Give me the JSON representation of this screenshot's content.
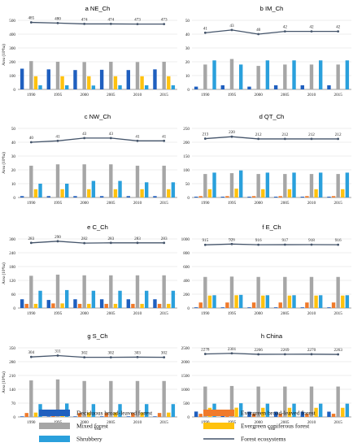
{
  "colors": {
    "deciduous": "#1f5fbf",
    "evergreen_broad": "#f07a2a",
    "mixed": "#a6a6a6",
    "evergreen_conifer": "#ffc20e",
    "shrub": "#2aa0dc",
    "forest": "#44546a",
    "grid": "#d9d9d9",
    "axis": "#808080"
  },
  "legend": {
    "items": [
      {
        "key": "deciduous",
        "label": "Deciduous broad-leaved forest",
        "kind": "box"
      },
      {
        "key": "evergreen_broad",
        "label": "Evergreen broad-leaved forest",
        "kind": "box"
      },
      {
        "key": "mixed",
        "label": "Mixed forest",
        "kind": "box"
      },
      {
        "key": "evergreen_conifer",
        "label": "Evergreen coniferous forest",
        "kind": "box"
      },
      {
        "key": "shrub",
        "label": "Shrubbery",
        "kind": "box"
      },
      {
        "key": "forest",
        "label": "Forest ecosystems",
        "kind": "line"
      }
    ]
  },
  "chart_data": [
    {
      "type": "bar",
      "title": "a NE_Ch",
      "ylabel": "Area (10⁴ha)",
      "xlabel": "",
      "categories": [
        "1990",
        "1995",
        "2000",
        "2005",
        "2010",
        "2015"
      ],
      "ylim": [
        0,
        500
      ],
      "yticks": [
        "0",
        "100",
        "200",
        "300",
        "400",
        "500"
      ],
      "grid": true,
      "series": [
        {
          "key": "deciduous",
          "values": [
            150,
            145,
            140,
            142,
            140,
            145
          ]
        },
        {
          "key": "evergreen_broad",
          "values": [
            0,
            0,
            0,
            0,
            0,
            0
          ]
        },
        {
          "key": "mixed",
          "values": [
            205,
            200,
            198,
            200,
            198,
            200
          ]
        },
        {
          "key": "evergreen_conifer",
          "values": [
            95,
            95,
            95,
            95,
            95,
            95
          ]
        },
        {
          "key": "shrub",
          "values": [
            30,
            30,
            28,
            30,
            30,
            30
          ]
        }
      ],
      "line": {
        "key": "forest",
        "values": [
          485,
          480,
          474,
          474,
          473,
          473
        ],
        "labels": [
          "485",
          "480",
          "474",
          "474",
          "473",
          "473"
        ]
      }
    },
    {
      "type": "bar",
      "title": "b IM_Ch",
      "ylabel": "",
      "xlabel": "",
      "categories": [
        "1990",
        "1995",
        "2000",
        "2005",
        "2010",
        "2015"
      ],
      "ylim": [
        0,
        50
      ],
      "yticks": [
        "0",
        "10",
        "20",
        "30",
        "40",
        "50"
      ],
      "grid": true,
      "series": [
        {
          "key": "deciduous",
          "values": [
            2,
            3,
            2,
            3,
            3,
            3
          ]
        },
        {
          "key": "evergreen_broad",
          "values": [
            0,
            0,
            0,
            0,
            0,
            0
          ]
        },
        {
          "key": "mixed",
          "values": [
            18,
            22,
            17,
            18,
            18,
            18
          ]
        },
        {
          "key": "evergreen_conifer",
          "values": [
            0,
            0,
            0,
            0,
            0,
            0
          ]
        },
        {
          "key": "shrub",
          "values": [
            21,
            18,
            21,
            21,
            21,
            21
          ]
        }
      ],
      "line": {
        "key": "forest",
        "values": [
          41,
          43,
          40,
          42,
          42,
          42
        ],
        "labels": [
          "41",
          "43",
          "40",
          "42",
          "42",
          "42"
        ]
      }
    },
    {
      "type": "bar",
      "title": "c NW_Ch",
      "ylabel": "Area (10⁴ha)",
      "xlabel": "",
      "categories": [
        "1990",
        "1995",
        "2000",
        "2005",
        "2010",
        "2015"
      ],
      "ylim": [
        0,
        50
      ],
      "yticks": [
        "0",
        "10",
        "20",
        "30",
        "40",
        "50"
      ],
      "grid": true,
      "series": [
        {
          "key": "deciduous",
          "values": [
            1,
            1,
            1,
            1,
            1,
            1
          ]
        },
        {
          "key": "evergreen_broad",
          "values": [
            0,
            0,
            0,
            0,
            0,
            0
          ]
        },
        {
          "key": "mixed",
          "values": [
            23,
            24,
            24,
            24,
            23,
            23
          ]
        },
        {
          "key": "evergreen_conifer",
          "values": [
            6,
            6,
            6,
            6,
            6,
            6
          ]
        },
        {
          "key": "shrub",
          "values": [
            10,
            10,
            12,
            12,
            11,
            11
          ]
        }
      ],
      "line": {
        "key": "forest",
        "values": [
          40,
          41,
          43,
          43,
          41,
          41
        ],
        "labels": [
          "40",
          "41",
          "43",
          "43",
          "41",
          "41"
        ]
      }
    },
    {
      "type": "bar",
      "title": "d QT_Ch",
      "ylabel": "",
      "xlabel": "",
      "categories": [
        "1990",
        "1995",
        "2000",
        "2005",
        "2010",
        "2015"
      ],
      "ylim": [
        0,
        250
      ],
      "yticks": [
        "0",
        "50",
        "100",
        "150",
        "200",
        "250"
      ],
      "grid": true,
      "series": [
        {
          "key": "deciduous",
          "values": [
            3,
            3,
            3,
            3,
            3,
            3
          ]
        },
        {
          "key": "evergreen_broad",
          "values": [
            5,
            5,
            5,
            5,
            5,
            5
          ]
        },
        {
          "key": "mixed",
          "values": [
            85,
            88,
            85,
            85,
            85,
            85
          ]
        },
        {
          "key": "evergreen_conifer",
          "values": [
            30,
            32,
            30,
            30,
            30,
            30
          ]
        },
        {
          "key": "shrub",
          "values": [
            90,
            98,
            90,
            90,
            90,
            90
          ]
        }
      ],
      "line": {
        "key": "forest",
        "values": [
          213,
          220,
          212,
          212,
          212,
          212
        ],
        "labels": [
          "213",
          "220",
          "212",
          "212",
          "212",
          "212"
        ]
      }
    },
    {
      "type": "bar",
      "title": "e C_Ch",
      "ylabel": "Area (10⁴ha)",
      "xlabel": "",
      "categories": [
        "1990",
        "1995",
        "2000",
        "2005",
        "2010",
        "2015"
      ],
      "ylim": [
        0,
        300
      ],
      "yticks": [
        "0",
        "60",
        "120",
        "180",
        "240",
        "300"
      ],
      "grid": true,
      "series": [
        {
          "key": "deciduous",
          "values": [
            38,
            35,
            38,
            38,
            38,
            38
          ]
        },
        {
          "key": "evergreen_broad",
          "values": [
            18,
            20,
            18,
            18,
            18,
            18
          ]
        },
        {
          "key": "mixed",
          "values": [
            140,
            145,
            142,
            142,
            142,
            142
          ]
        },
        {
          "key": "evergreen_conifer",
          "values": [
            18,
            20,
            18,
            18,
            18,
            18
          ]
        },
        {
          "key": "shrub",
          "values": [
            75,
            78,
            75,
            75,
            75,
            75
          ]
        }
      ],
      "line": {
        "key": "forest",
        "values": [
          283,
          290,
          282,
          283,
          283,
          283
        ],
        "labels": [
          "283",
          "290",
          "282",
          "283",
          "283",
          "283"
        ]
      }
    },
    {
      "type": "bar",
      "title": "f E_Ch",
      "ylabel": "",
      "xlabel": "",
      "categories": [
        "1990",
        "1995",
        "2000",
        "2005",
        "2010",
        "2015"
      ],
      "ylim": [
        0,
        1000
      ],
      "yticks": [
        "0",
        "200",
        "400",
        "600",
        "800",
        "1000"
      ],
      "grid": true,
      "series": [
        {
          "key": "deciduous",
          "values": [
            10,
            10,
            10,
            10,
            10,
            10
          ]
        },
        {
          "key": "evergreen_broad",
          "values": [
            80,
            80,
            80,
            80,
            80,
            80
          ]
        },
        {
          "key": "mixed",
          "values": [
            450,
            455,
            450,
            450,
            450,
            450
          ]
        },
        {
          "key": "evergreen_conifer",
          "values": [
            180,
            185,
            180,
            180,
            180,
            180
          ]
        },
        {
          "key": "shrub",
          "values": [
            185,
            190,
            185,
            185,
            185,
            185
          ]
        }
      ],
      "line": {
        "key": "forest",
        "values": [
          915,
          926,
          916,
          917,
          918,
          916
        ],
        "labels": [
          "915",
          "926",
          "916",
          "917",
          "918",
          "916"
        ]
      }
    },
    {
      "type": "bar",
      "title": "g S_Ch",
      "ylabel": "Area (10⁴ha)",
      "xlabel": "Year",
      "categories": [
        "1990",
        "1995",
        "2000",
        "2005",
        "2010",
        "2015"
      ],
      "ylim": [
        0,
        350
      ],
      "yticks": [
        "0",
        "70",
        "140",
        "210",
        "280",
        "350"
      ],
      "grid": true,
      "series": [
        {
          "key": "deciduous",
          "values": [
            3,
            3,
            3,
            3,
            3,
            3
          ]
        },
        {
          "key": "evergreen_broad",
          "values": [
            20,
            20,
            20,
            20,
            20,
            20
          ]
        },
        {
          "key": "mixed",
          "values": [
            185,
            190,
            182,
            182,
            182,
            182
          ]
        },
        {
          "key": "evergreen_conifer",
          "values": [
            22,
            22,
            22,
            22,
            22,
            22
          ]
        },
        {
          "key": "shrub",
          "values": [
            65,
            68,
            65,
            65,
            65,
            65
          ]
        }
      ],
      "line": {
        "key": "forest",
        "values": [
          304,
          311,
          302,
          302,
          303,
          302
        ],
        "labels": [
          "304",
          "311",
          "302",
          "302",
          "303",
          "302"
        ]
      }
    },
    {
      "type": "bar",
      "title": "h China",
      "ylabel": "",
      "xlabel": "Year",
      "categories": [
        "1990",
        "1995",
        "2000",
        "2005",
        "2010",
        "2015"
      ],
      "ylim": [
        0,
        2500
      ],
      "yticks": [
        "0",
        "500",
        "1000",
        "1500",
        "2000",
        "2500"
      ],
      "grid": true,
      "series": [
        {
          "key": "deciduous",
          "values": [
            195,
            190,
            190,
            190,
            190,
            190
          ]
        },
        {
          "key": "evergreen_broad",
          "values": [
            115,
            115,
            115,
            115,
            115,
            115
          ]
        },
        {
          "key": "mixed",
          "values": [
            1100,
            1120,
            1100,
            1100,
            1100,
            1100
          ]
        },
        {
          "key": "evergreen_conifer",
          "values": [
            330,
            335,
            330,
            330,
            330,
            330
          ]
        },
        {
          "key": "shrub",
          "values": [
            480,
            495,
            480,
            480,
            480,
            480
          ]
        }
      ],
      "line": {
        "key": "forest",
        "values": [
          2278,
          2301,
          2266,
          2269,
          2270,
          2263
        ],
        "labels": [
          "2278",
          "2301",
          "2266",
          "2269",
          "2270",
          "2263"
        ]
      }
    }
  ]
}
